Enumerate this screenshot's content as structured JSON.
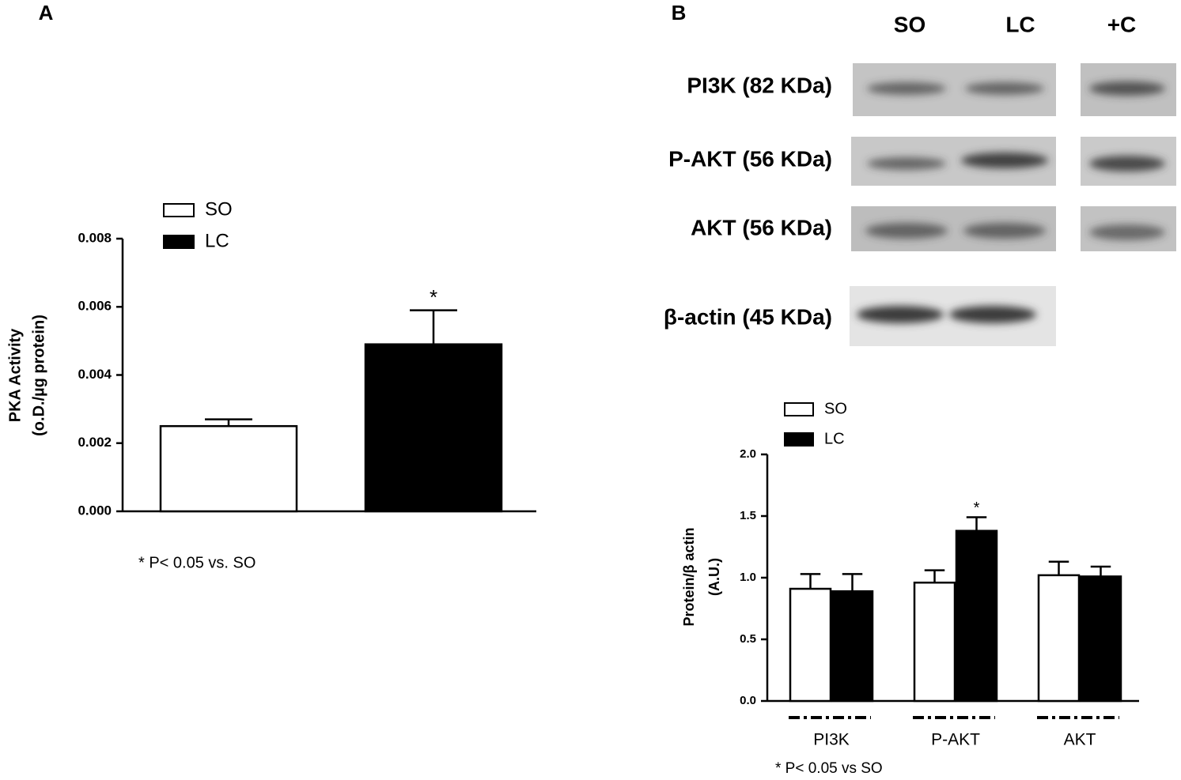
{
  "chart_data": [
    {
      "type": "bar",
      "panel": "A",
      "categories": [
        null
      ],
      "series": [
        {
          "name": "SO",
          "color": "#ffffff",
          "values": [
            0.0025
          ],
          "errors": [
            0.0002
          ]
        },
        {
          "name": "LC",
          "color": "#000000",
          "values": [
            0.0049
          ],
          "errors": [
            0.001
          ]
        }
      ],
      "ylabel": [
        "PKA Activity",
        "(o.D./µg protein)"
      ],
      "ylim": [
        0,
        0.008
      ],
      "yticks": [
        {
          "value": 0,
          "label": "0.000"
        },
        {
          "value": 0.002,
          "label": "0.002"
        },
        {
          "value": 0.004,
          "label": "0.004"
        },
        {
          "value": 0.006,
          "label": "0.006"
        },
        {
          "value": 0.008,
          "label": "0.008"
        }
      ],
      "annotation": "*",
      "footnote": "* P< 0.05 vs.  SO"
    },
    {
      "type": "bar",
      "panel": "B",
      "categories": [
        "PI3K",
        "P-AKT",
        "AKT"
      ],
      "series": [
        {
          "name": "SO",
          "color": "#ffffff",
          "values": [
            0.91,
            0.96,
            1.02
          ],
          "errors": [
            0.12,
            0.1,
            0.11
          ]
        },
        {
          "name": "LC",
          "color": "#000000",
          "values": [
            0.89,
            1.38,
            1.01
          ],
          "errors": [
            0.14,
            0.11,
            0.08
          ]
        }
      ],
      "ylabel": [
        "Protein/β actin",
        "(A.U.)"
      ],
      "ylim": [
        0,
        2.0
      ],
      "yticks": [
        {
          "value": 0,
          "label": "0.0"
        },
        {
          "value": 0.5,
          "label": "0.5"
        },
        {
          "value": 1.0,
          "label": "1.0"
        },
        {
          "value": 1.5,
          "label": "1.5"
        },
        {
          "value": 2.0,
          "label": "2.0"
        }
      ],
      "annotation": "*",
      "footnote": "* P< 0.05 vs SO"
    }
  ],
  "blot": {
    "columns": [
      "SO",
      "LC",
      "+C"
    ],
    "rows": [
      "PI3K (82 KDa)",
      "P-AKT (56 KDa)",
      "AKT (56 KDa)",
      "β-actin (45 KDa)"
    ]
  }
}
